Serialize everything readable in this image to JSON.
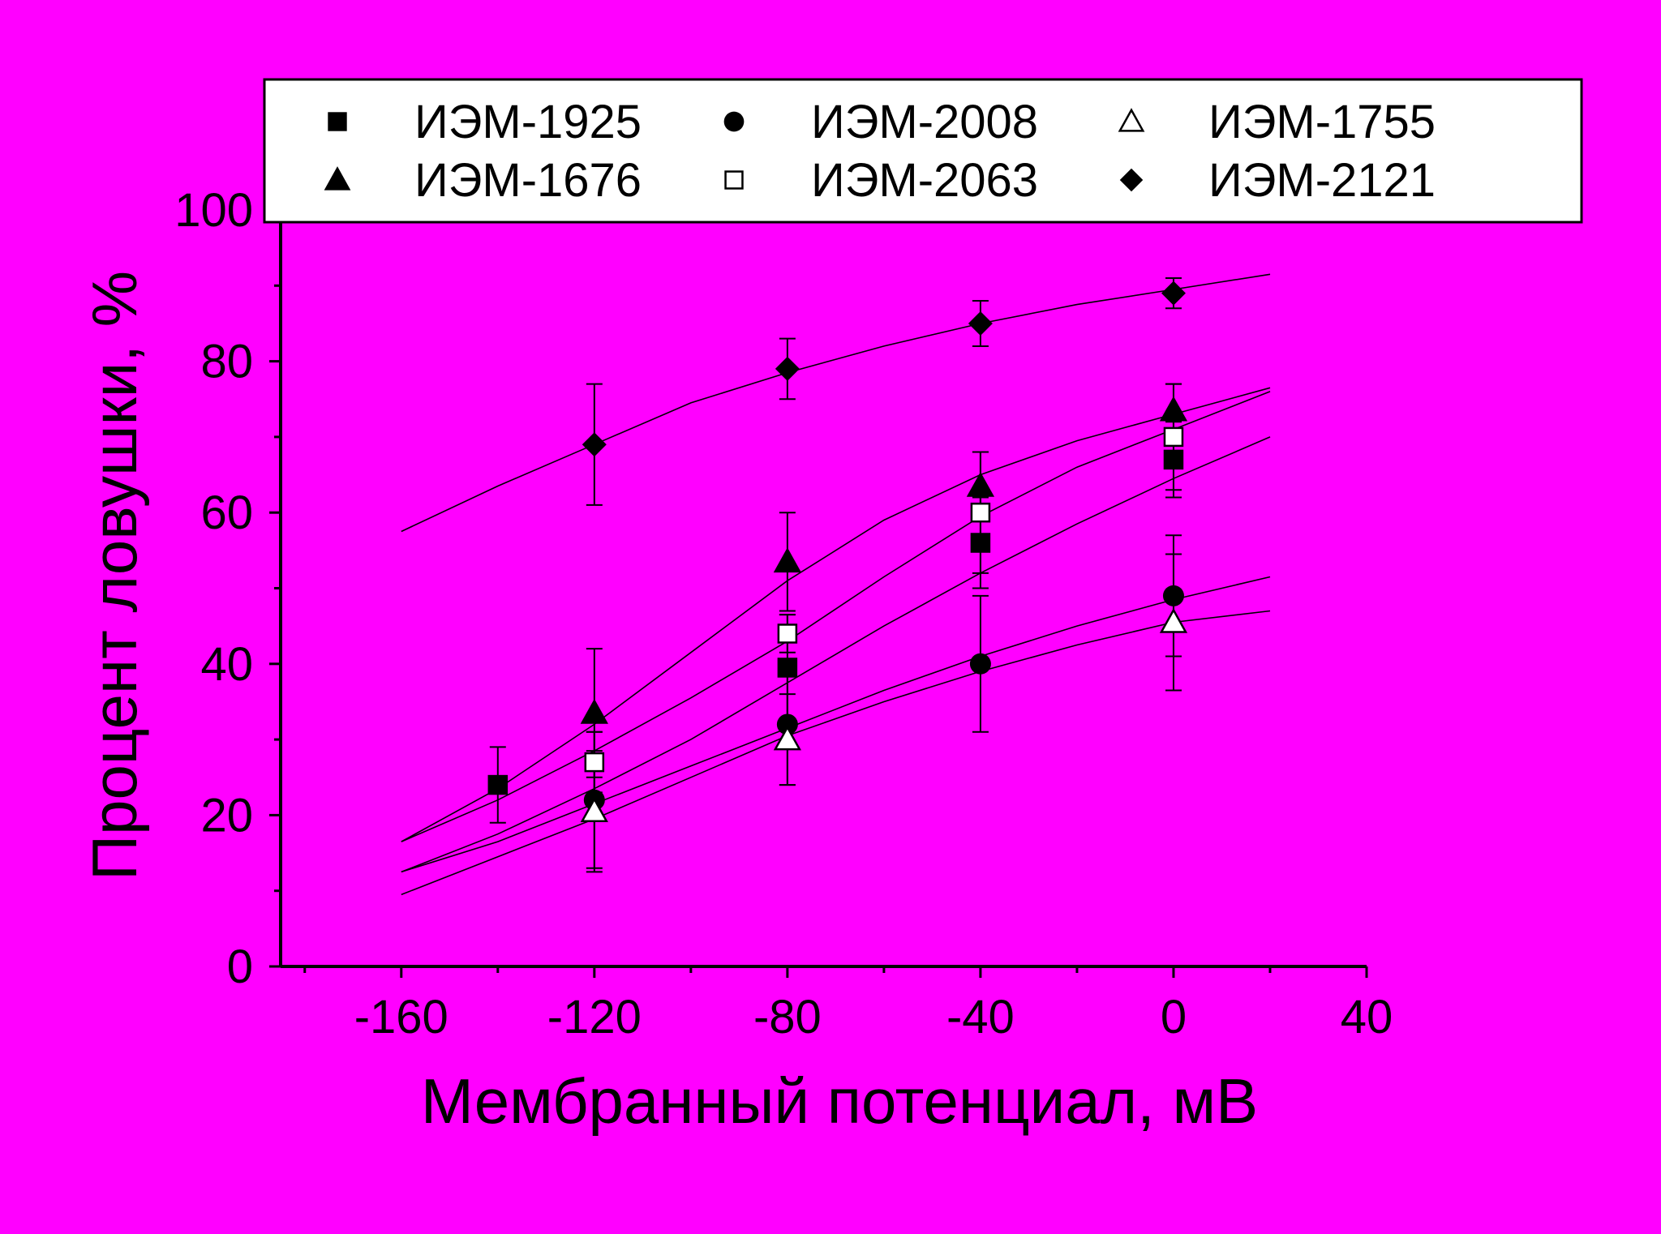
{
  "background_color": "#ff00ff",
  "chart_data": {
    "type": "scatter",
    "xlabel": "Мембранный потенциал, мВ",
    "ylabel": "Процент ловушки, %",
    "xlim": [
      -185,
      40
    ],
    "ylim": [
      0,
      100
    ],
    "xticks": [
      -160,
      -120,
      -80,
      -40,
      0,
      40
    ],
    "yticks": [
      0,
      20,
      40,
      60,
      80,
      100
    ],
    "x_tick_labels": [
      "-160",
      "-120",
      "-80",
      "-40",
      "0",
      "40"
    ],
    "y_tick_labels": [
      "0",
      "20",
      "40",
      "60",
      "80",
      "100"
    ],
    "grid": false,
    "legend_position": "top",
    "fit_curves": true,
    "series": [
      {
        "name": "ИЭМ-1925",
        "marker": "square-filled",
        "x": [
          -140,
          -80,
          -40,
          0
        ],
        "y": [
          24,
          39.5,
          56,
          67
        ],
        "err": [
          5,
          7,
          6,
          5
        ],
        "fit": {
          "x": [
            -160,
            -140,
            -120,
            -100,
            -80,
            -60,
            -40,
            -20,
            0,
            20
          ],
          "y": [
            12.5,
            17.5,
            23.5,
            30,
            37.5,
            45,
            52,
            58.5,
            64.5,
            70
          ]
        }
      },
      {
        "name": "ИЭМ-2008",
        "marker": "circle-filled",
        "x": [
          -120,
          -80,
          -40,
          0
        ],
        "y": [
          22,
          32,
          40,
          49
        ],
        "err": [
          9,
          8,
          9,
          8
        ],
        "fit": {
          "x": [
            -160,
            -140,
            -120,
            -100,
            -80,
            -60,
            -40,
            -20,
            0,
            20
          ],
          "y": [
            12.5,
            16.5,
            21.5,
            26.5,
            31.5,
            36.5,
            41,
            45,
            48.5,
            51.5
          ]
        }
      },
      {
        "name": "ИЭМ-1755",
        "marker": "triangle-open",
        "x": [
          -120,
          -80,
          0
        ],
        "y": [
          20.5,
          30,
          45.5
        ],
        "err": [
          8,
          6,
          9
        ],
        "fit": {
          "x": [
            -160,
            -140,
            -120,
            -100,
            -80,
            -60,
            -40,
            -20,
            0,
            20
          ],
          "y": [
            9.5,
            14.5,
            19.5,
            25,
            30.5,
            35,
            39,
            42.5,
            45.5,
            47
          ]
        }
      },
      {
        "name": "ИЭМ-1676",
        "marker": "triangle-filled",
        "x": [
          -120,
          -80,
          -40,
          0
        ],
        "y": [
          33.5,
          53.5,
          63.5,
          73.5
        ],
        "err": [
          8.5,
          6.5,
          4.5,
          3.5
        ],
        "fit": {
          "x": [
            -160,
            -140,
            -120,
            -100,
            -80,
            -60,
            -40,
            -20,
            0,
            20
          ],
          "y": [
            16.5,
            23.5,
            32,
            41.5,
            51,
            59,
            65,
            69.5,
            73,
            76.5
          ]
        }
      },
      {
        "name": "ИЭМ-2063",
        "marker": "square-open",
        "x": [
          -120,
          -80,
          -40,
          0
        ],
        "y": [
          27,
          44,
          60,
          70
        ],
        "err": [
          4,
          2.5,
          8,
          7
        ],
        "fit": {
          "x": [
            -160,
            -140,
            -120,
            -100,
            -80,
            -60,
            -40,
            -20,
            0,
            20
          ],
          "y": [
            16.5,
            22,
            28.5,
            35.5,
            43,
            51.5,
            59.5,
            66,
            71,
            76
          ]
        }
      },
      {
        "name": "ИЭМ-2121",
        "marker": "diamond-filled",
        "x": [
          -120,
          -80,
          -40,
          0
        ],
        "y": [
          69,
          79,
          85,
          89
        ],
        "err": [
          8,
          4,
          3,
          2
        ],
        "fit": {
          "x": [
            -160,
            -140,
            -120,
            -100,
            -80,
            -60,
            -40,
            -20,
            0,
            20
          ],
          "y": [
            57.5,
            63.5,
            69,
            74.5,
            78.5,
            82,
            85,
            87.5,
            89.5,
            91.5
          ]
        }
      }
    ]
  }
}
